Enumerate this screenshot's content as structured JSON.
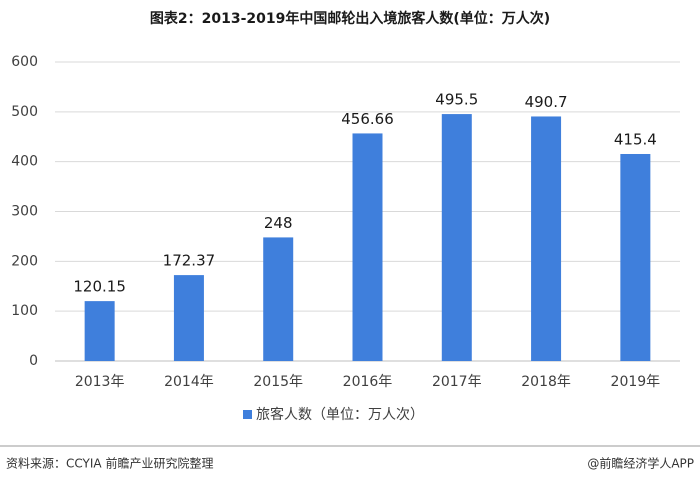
{
  "chart_data": {
    "type": "bar",
    "title": "图表2：2013-2019年中国邮轮出入境旅客人数(单位：万人次)",
    "categories": [
      "2013年",
      "2014年",
      "2015年",
      "2016年",
      "2017年",
      "2018年",
      "2019年"
    ],
    "series": [
      {
        "name": "旅客人数（单位：万人次）",
        "color": "#3f7fdc",
        "values": [
          120.15,
          172.37,
          248,
          456.66,
          495.5,
          490.7,
          415.4
        ]
      }
    ],
    "ylim": [
      0,
      600
    ],
    "yticks": [
      0,
      100,
      200,
      300,
      400,
      500,
      600
    ],
    "grid": true,
    "legend": "bottom"
  },
  "footer": {
    "source": "资料来源：CCYIA 前瞻产业研究院整理",
    "credit": "@前瞻经济学人APP"
  }
}
